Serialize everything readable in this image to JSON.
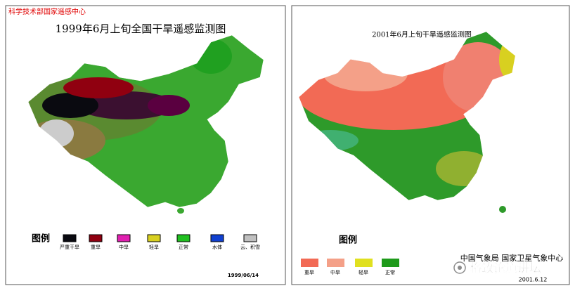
{
  "left_panel": {
    "agency": "科学技术部国家遥感中心",
    "title": "1999年6月上旬全国干旱遥感监测图",
    "legend": {
      "title": "图例",
      "items": [
        "严重干旱",
        "重旱",
        "中旱",
        "轻旱",
        "正常",
        "水体",
        "云、积雪"
      ]
    },
    "date": "1999/06/14"
  },
  "right_panel": {
    "title": "2001年6月上旬干旱遥感监测图",
    "legend": {
      "title": "图例",
      "items": [
        "重旱",
        "中旱",
        "轻旱",
        "正常"
      ]
    },
    "agency": "中国气象局 国家卫星气象中心",
    "date": "2001.6.12"
  },
  "watermark": "格致论道讲坛"
}
